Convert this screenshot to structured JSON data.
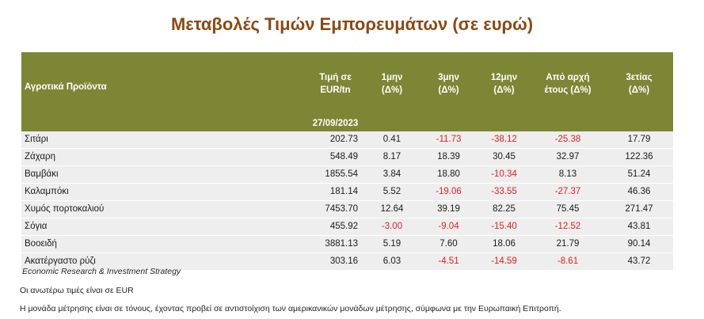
{
  "title": "Μεταβολές Τιμών Εμπορευμάτων (σε ευρώ)",
  "table": {
    "headers": {
      "product": "Αγροτικά Προϊόντα",
      "price": [
        "Τιμή σε",
        "EUR/tn"
      ],
      "m1": [
        "1μην",
        "(Δ%)"
      ],
      "m3": [
        "3μην",
        "(Δ%)"
      ],
      "m12": [
        "12μην",
        "(Δ%)"
      ],
      "ytd": [
        "Από αρχή",
        "έτους  (Δ%)"
      ],
      "y3": [
        "3ετίας",
        "(Δ%)"
      ]
    },
    "date": "27/09/2023",
    "rows": [
      {
        "name": "Σιτάρι",
        "price": "202.73",
        "m1": "0.41",
        "m3": "-11.73",
        "m12": "-38.12",
        "ytd": "-25.38",
        "y3": "17.79"
      },
      {
        "name": "Ζάχαρη",
        "price": "548.49",
        "m1": "8.17",
        "m3": "18.39",
        "m12": "30.45",
        "ytd": "32.97",
        "y3": "122.36"
      },
      {
        "name": "Βαμβάκι",
        "price": "1855.54",
        "m1": "3.84",
        "m3": "18.80",
        "m12": "-10.34",
        "ytd": "8.13",
        "y3": "51.24"
      },
      {
        "name": "Καλαμπόκι",
        "price": "181.14",
        "m1": "5.52",
        "m3": "-19.06",
        "m12": "-33.55",
        "ytd": "-27.37",
        "y3": "46.36"
      },
      {
        "name": "Χυμός πορτοκαλιού",
        "price": "7453.70",
        "m1": "12.64",
        "m3": "39.19",
        "m12": "82.25",
        "ytd": "75.45",
        "y3": "271.47"
      },
      {
        "name": "Σόγια",
        "price": "455.92",
        "m1": "-3.00",
        "m3": "-9.04",
        "m12": "-15.40",
        "ytd": "-12.52",
        "y3": "43.81"
      },
      {
        "name": "Βοοειδή",
        "price": "3881.13",
        "m1": "5.19",
        "m3": "7.60",
        "m12": "18.06",
        "ytd": "21.79",
        "y3": "90.14"
      },
      {
        "name": "Ακατέργαστο ρύζι",
        "price": "303.16",
        "m1": "6.03",
        "m3": "-4.51",
        "m12": "-14.59",
        "ytd": "-8.61",
        "y3": "43.72"
      }
    ]
  },
  "colors": {
    "title": "#8a4a14",
    "header_bg": "#7c8635",
    "row_bg": "#eeeeee",
    "negative": "#e02020"
  },
  "footer": {
    "source": "Economic Research & Investment Strategy",
    "note1": "Οι ανωτέρω τιμές είναι σε EUR",
    "note2": "Η μονάδα μέτρησης είναι σε τόνους, έχοντας προβεί σε αντιστοίχιση των αμερικανικών μονάδων μέτρησης, σύμφωνα με την Ευρωπαική Επιτροπή."
  }
}
